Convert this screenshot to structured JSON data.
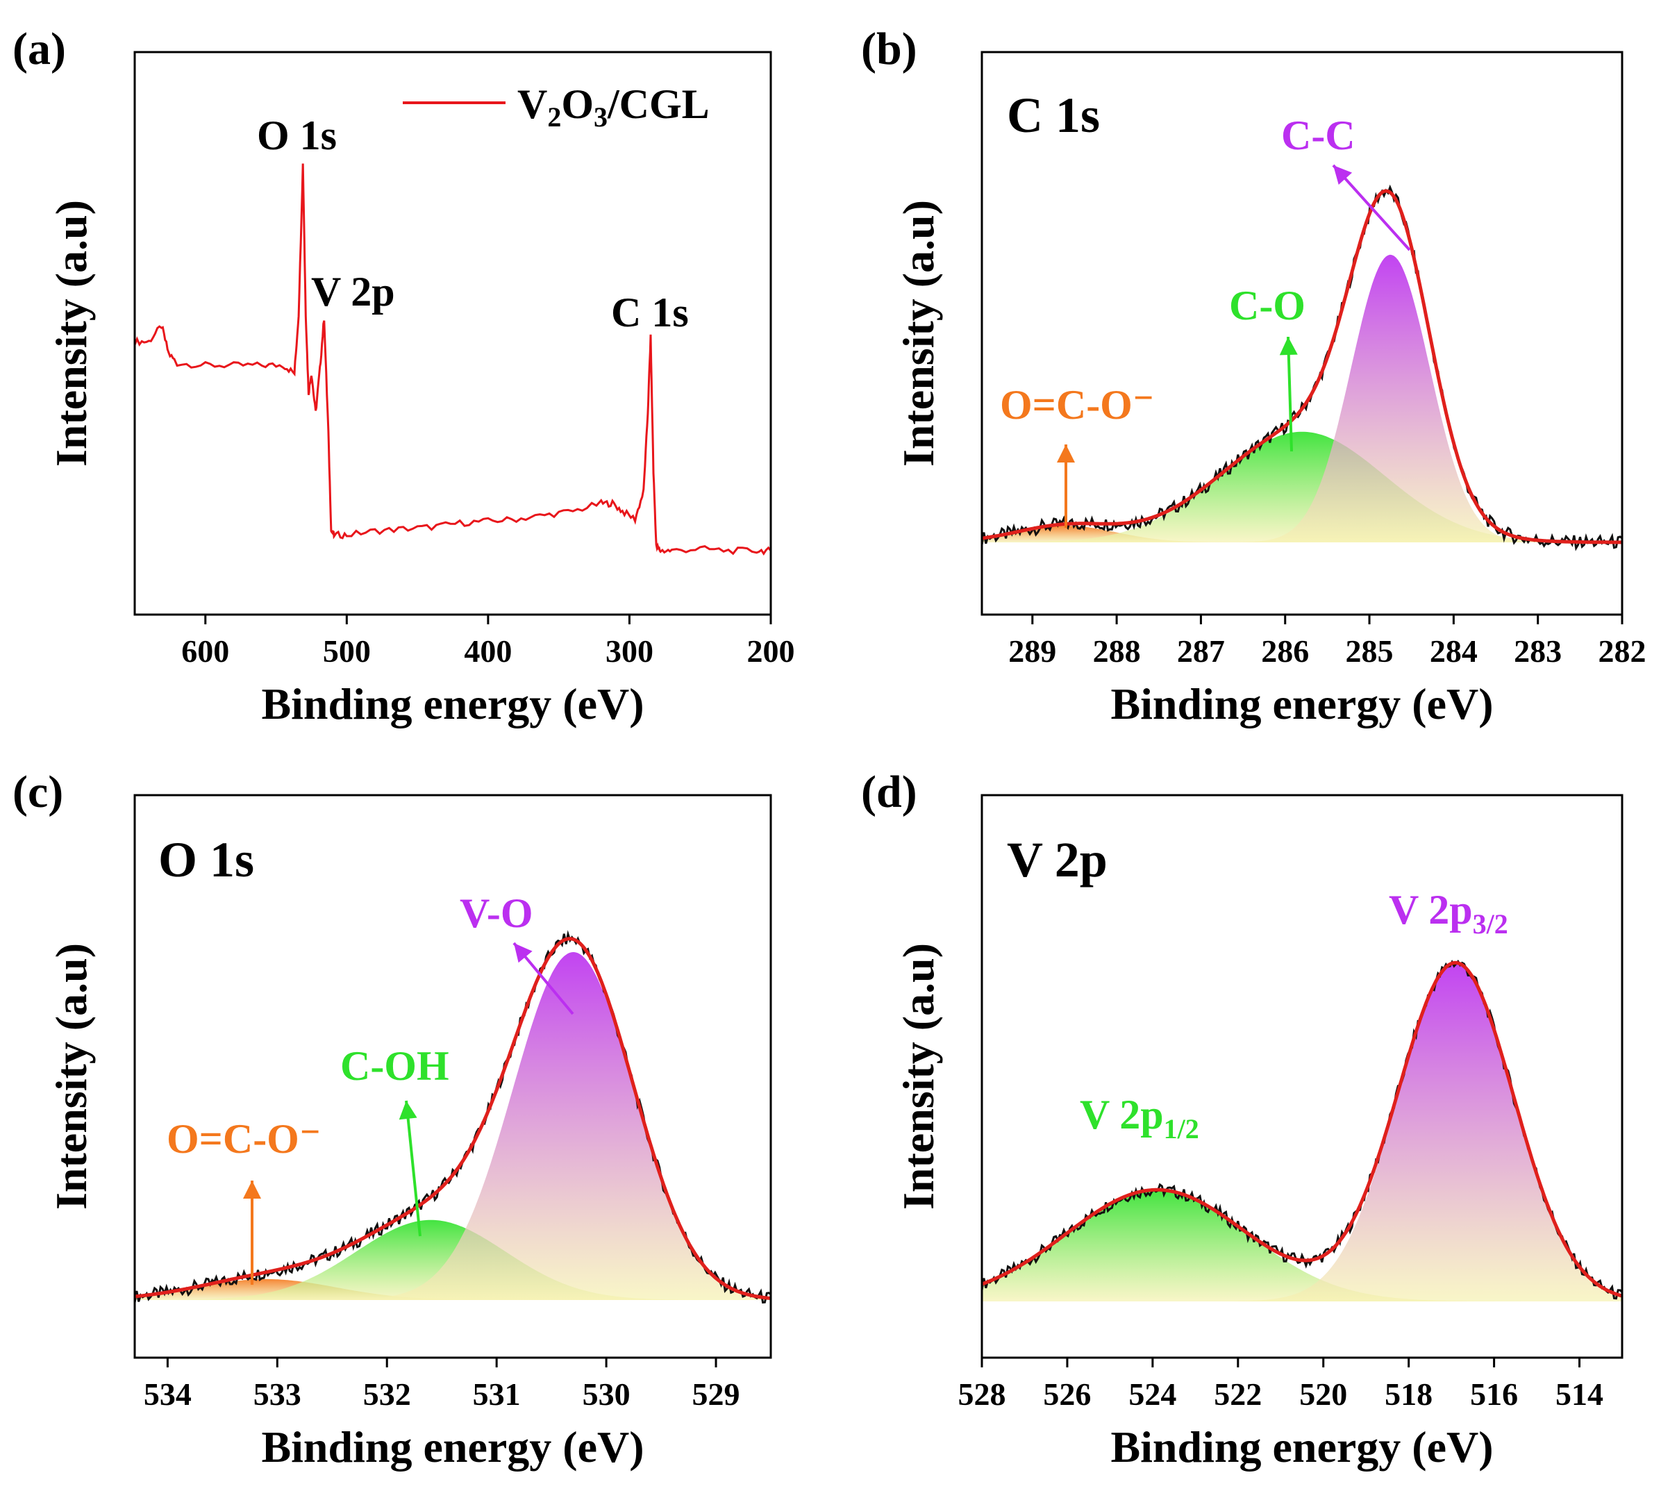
{
  "chart_data": [
    {
      "type": "line",
      "panel_label": "(a)",
      "xlabel": "Binding energy (eV)",
      "ylabel": "Intensity (a.u)",
      "xlim": [
        650,
        200
      ],
      "x_ticks": [
        600,
        500,
        400,
        300,
        200
      ],
      "legend": {
        "label_main": "V",
        "sub1": "2",
        "mid": "O",
        "sub2": "3",
        "tail": "/CGL",
        "placement": "top-right"
      },
      "peak_labels": [
        {
          "text": "O 1s",
          "x": 531
        },
        {
          "text": "V 2p",
          "x": 516
        },
        {
          "text": "C 1s",
          "x": 284.8
        }
      ],
      "series": [
        {
          "color": "#e8161b",
          "x": [
            650,
            640,
            631,
            626,
            620,
            600,
            580,
            560,
            545,
            537,
            534,
            531,
            529,
            527,
            525,
            522,
            519,
            516,
            513,
            511,
            509,
            500,
            480,
            460,
            440,
            420,
            400,
            380,
            360,
            340,
            320,
            312,
            305,
            296,
            290,
            287,
            285,
            283,
            281,
            278,
            270,
            250,
            230,
            210,
            200
          ],
          "y": [
            0.53,
            0.53,
            0.57,
            0.5,
            0.475,
            0.47,
            0.47,
            0.47,
            0.47,
            0.45,
            0.6,
            0.98,
            0.6,
            0.4,
            0.45,
            0.35,
            0.46,
            0.59,
            0.3,
            0.05,
            0.04,
            0.04,
            0.05,
            0.055,
            0.06,
            0.07,
            0.075,
            0.08,
            0.09,
            0.1,
            0.12,
            0.12,
            0.1,
            0.08,
            0.15,
            0.35,
            0.54,
            0.2,
            0.01,
            0.0,
            0.0,
            0.005,
            0.0,
            0.0,
            0.0
          ]
        }
      ]
    },
    {
      "type": "area",
      "panel_label": "(b)",
      "inset_title": "C 1s",
      "xlabel": "Binding energy (eV)",
      "ylabel": "Intensity (a.u)",
      "xlim": [
        289.6,
        282
      ],
      "x_ticks": [
        289,
        288,
        287,
        286,
        285,
        284,
        283,
        282
      ],
      "components": [
        {
          "label": "O=C-O⁻",
          "center": 288.6,
          "fwhm": 1.4,
          "height": 0.045,
          "color": "#f4781d"
        },
        {
          "label": "C-O",
          "center": 285.8,
          "fwhm": 2.3,
          "height": 0.3,
          "color": "#2ee12b"
        },
        {
          "label": "C-C",
          "center": 284.75,
          "fwhm": 1.1,
          "height": 0.78,
          "color": "#bb2ff0"
        }
      ]
    },
    {
      "type": "area",
      "panel_label": "(c)",
      "inset_title": "O 1s",
      "xlabel": "Binding energy (eV)",
      "ylabel": "Intensity (a.u)",
      "xlim": [
        534.3,
        528.5
      ],
      "x_ticks": [
        534,
        533,
        532,
        531,
        530,
        529
      ],
      "components": [
        {
          "label": "O=C-O⁻",
          "center": 533.1,
          "fwhm": 1.5,
          "height": 0.06,
          "color": "#f4781d"
        },
        {
          "label": "C-OH",
          "center": 531.6,
          "fwhm": 1.6,
          "height": 0.23,
          "color": "#2ee12b"
        },
        {
          "label": "V-O",
          "center": 530.3,
          "fwhm": 1.3,
          "height": 1.0,
          "color": "#bb2ff0"
        }
      ]
    },
    {
      "type": "area",
      "panel_label": "(d)",
      "inset_title": "V 2p",
      "xlabel": "Binding energy (eV)",
      "ylabel": "Intensity (a.u)",
      "xlim": [
        528,
        513
      ],
      "x_ticks": [
        528,
        526,
        524,
        522,
        520,
        518,
        516,
        514
      ],
      "components": [
        {
          "label_main": "V 2p",
          "label_sub": "1/2",
          "center": 523.9,
          "fwhm": 5.0,
          "height": 0.33,
          "color": "#2ee12b"
        },
        {
          "label_main": "V 2p",
          "label_sub": "3/2",
          "center": 516.9,
          "fwhm": 3.2,
          "height": 1.0,
          "color": "#bb2ff0"
        }
      ]
    }
  ]
}
